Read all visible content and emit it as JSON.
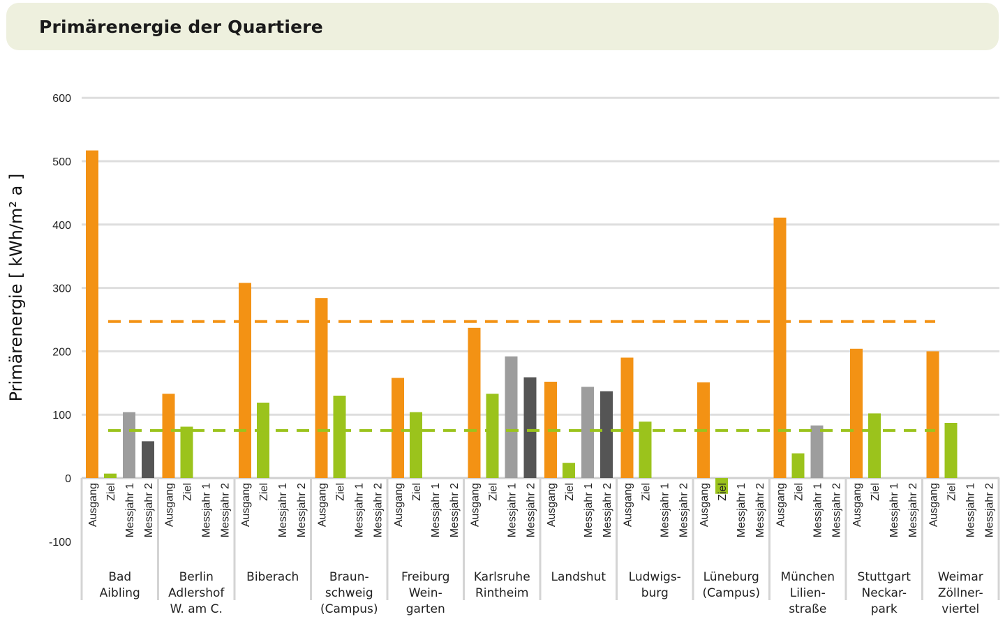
{
  "header": {
    "title": "Primärenergie der Quartiere"
  },
  "colors": {
    "ausgang": "#f39214",
    "ziel": "#9bc31c",
    "messjahr1": "#9d9d9d",
    "messjahr2": "#555555",
    "grid": "#dedede",
    "ref_orange": "#f39214",
    "ref_green": "#9bc31c"
  },
  "chart_data": {
    "type": "bar",
    "ylabel": "Primärenergie  [ kWh/m² a ]",
    "ylim": [
      -100,
      600
    ],
    "yticks": [
      "600",
      "500",
      "400",
      "300",
      "200",
      "100",
      "0",
      "-100"
    ],
    "grid": true,
    "series_labels": [
      "Ausgang",
      "Ziel",
      "Messjahr 1",
      "Messjahr 2"
    ],
    "categories": [
      {
        "label": [
          "Bad",
          "Aibling"
        ],
        "values": [
          517,
          7,
          104,
          58
        ]
      },
      {
        "label": [
          "Berlin",
          "Adlershof",
          "W. am C."
        ],
        "values": [
          133,
          81,
          null,
          null
        ]
      },
      {
        "label": [
          "Biberach"
        ],
        "values": [
          308,
          119,
          null,
          null
        ]
      },
      {
        "label": [
          "Braun-",
          "schweig",
          "(Campus)"
        ],
        "values": [
          284,
          130,
          null,
          null
        ]
      },
      {
        "label": [
          "Freiburg",
          "Wein-",
          "garten"
        ],
        "values": [
          158,
          104,
          null,
          null
        ]
      },
      {
        "label": [
          "Karlsruhe",
          "Rintheim"
        ],
        "values": [
          237,
          133,
          192,
          159
        ]
      },
      {
        "label": [
          "Landshut"
        ],
        "values": [
          152,
          24,
          144,
          137
        ]
      },
      {
        "label": [
          "Ludwigs-",
          "burg"
        ],
        "values": [
          190,
          89,
          null,
          null
        ]
      },
      {
        "label": [
          "Lüneburg",
          "(Campus)"
        ],
        "values": [
          151,
          -25,
          null,
          null
        ]
      },
      {
        "label": [
          "München",
          "Lilien-",
          "straße"
        ],
        "values": [
          411,
          39,
          83,
          null
        ]
      },
      {
        "label": [
          "Stuttgart",
          "Neckar-",
          "park"
        ],
        "values": [
          204,
          102,
          null,
          null
        ]
      },
      {
        "label": [
          "Weimar",
          "Zöllner-",
          "viertel"
        ],
        "values": [
          200,
          87,
          null,
          null
        ]
      }
    ],
    "reference_lines": [
      {
        "value": 247,
        "color": "orange",
        "style": "dashed"
      },
      {
        "value": 75,
        "color": "green",
        "style": "dashed"
      }
    ]
  }
}
